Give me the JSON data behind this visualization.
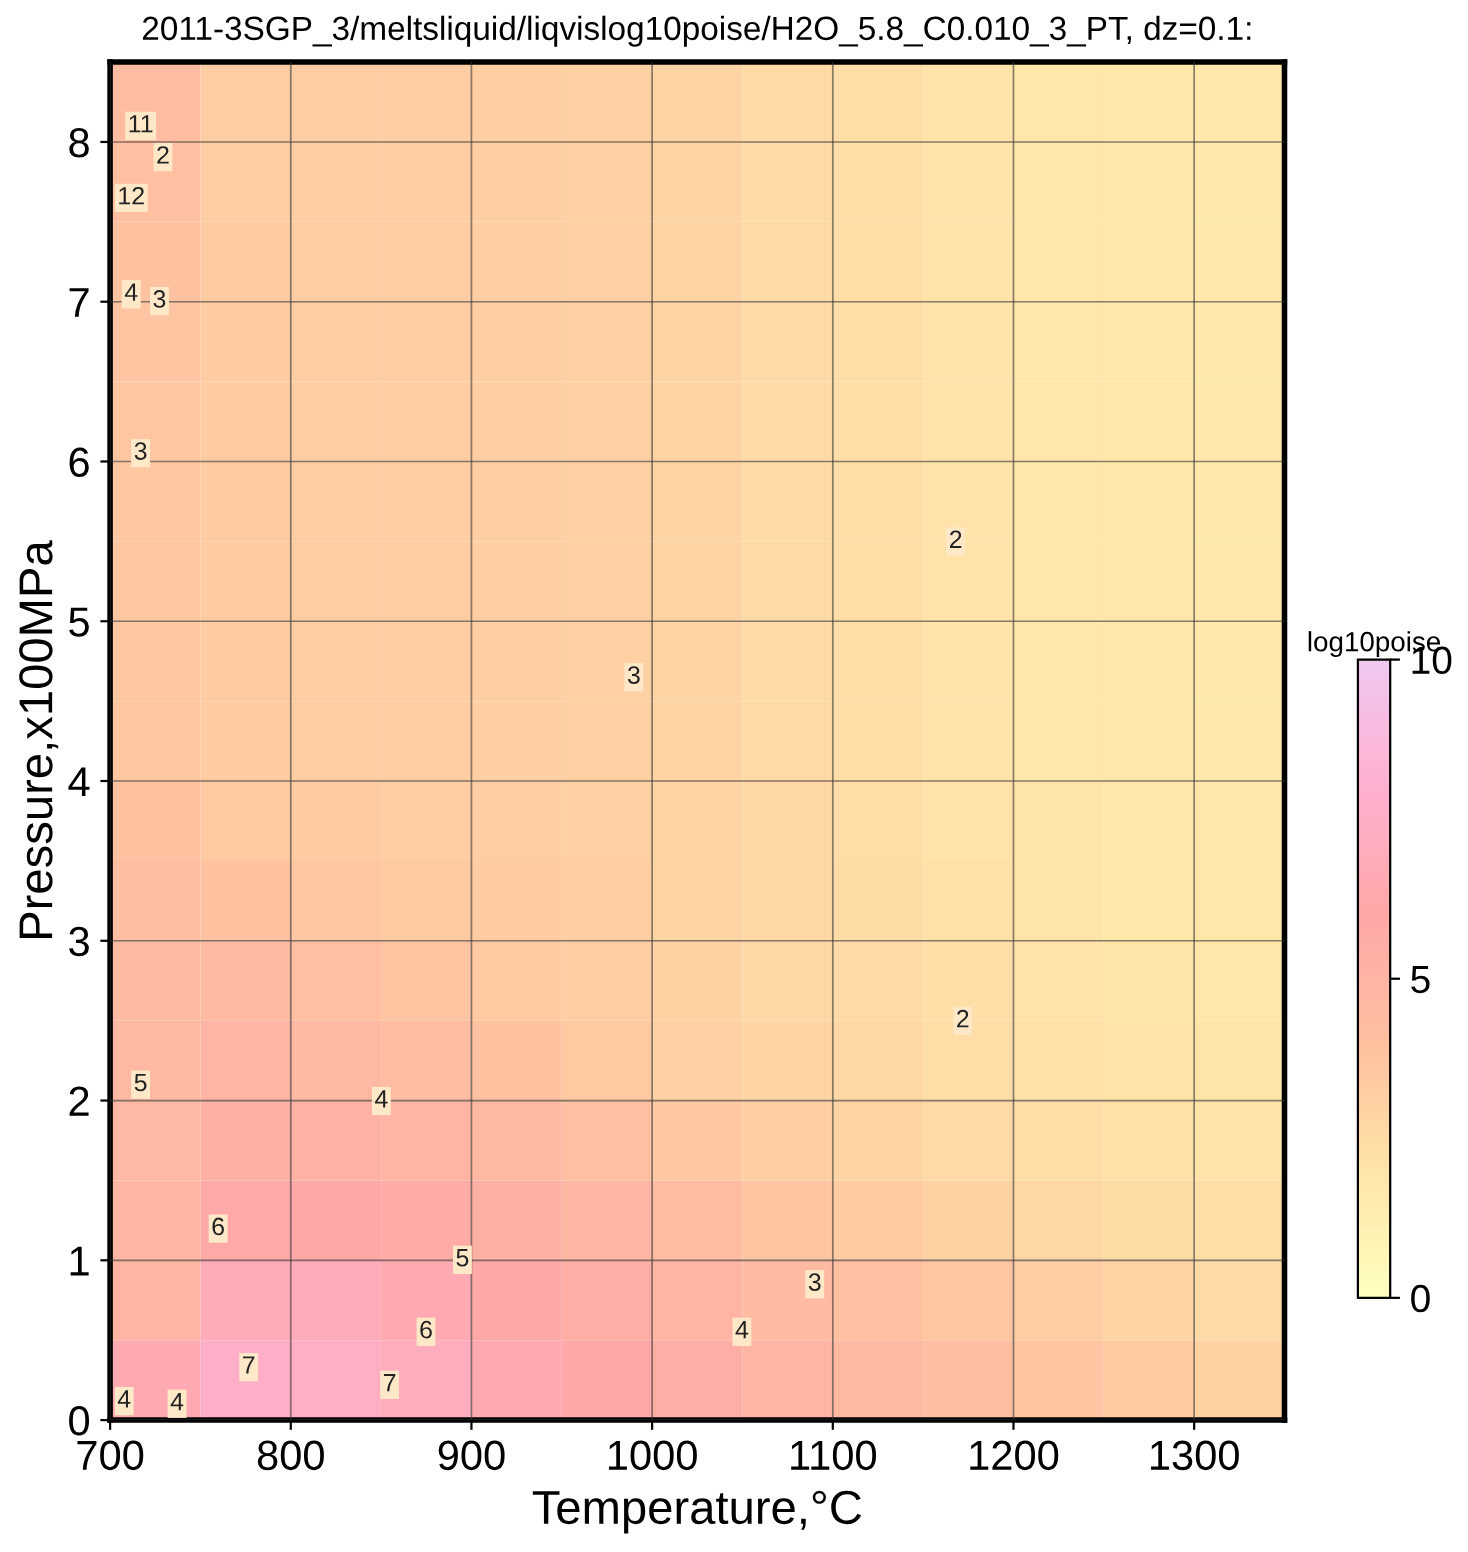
{
  "chart_data": {
    "type": "heatmap",
    "title": "2011-3SGP_3/meltsliquid/liqvislog10poise/H2O_5.8_C0.010_3_PT, dz=0.1:",
    "xlabel": "Temperature,°C",
    "ylabel": "Pressure,x100MPa",
    "clabel": "log10poise",
    "x": [
      725,
      775,
      825,
      875,
      925,
      975,
      1025,
      1075,
      1125,
      1175,
      1225,
      1275,
      1325
    ],
    "y": [
      0.25,
      0.75,
      1.25,
      1.75,
      2.25,
      2.75,
      3.25,
      3.75,
      4.25,
      4.75,
      5.25,
      5.75,
      6.25,
      6.75,
      7.25,
      7.75,
      8.25
    ],
    "cells": [
      [
        6.5,
        7.5,
        7.4,
        7.0,
        6.5,
        6.0,
        5.5,
        5.0,
        4.6,
        4.2,
        3.8,
        3.4,
        3.0
      ],
      [
        5.0,
        6.8,
        6.9,
        6.5,
        6.0,
        5.5,
        5.0,
        4.5,
        4.1,
        3.7,
        3.3,
        2.9,
        2.6
      ],
      [
        4.8,
        5.9,
        6.0,
        5.7,
        5.3,
        4.8,
        4.3,
        3.8,
        3.4,
        3.0,
        2.7,
        2.5,
        2.3
      ],
      [
        4.7,
        5.3,
        5.2,
        5.0,
        4.6,
        4.1,
        3.6,
        3.2,
        2.9,
        2.6,
        2.4,
        2.2,
        2.1
      ],
      [
        4.6,
        5.0,
        4.6,
        4.3,
        3.9,
        3.5,
        3.1,
        2.9,
        2.7,
        2.4,
        2.2,
        2.1,
        2.0
      ],
      [
        4.4,
        4.4,
        4.1,
        3.8,
        3.5,
        3.3,
        3.0,
        2.8,
        2.6,
        2.3,
        2.1,
        2.0,
        1.9
      ],
      [
        4.2,
        3.9,
        3.6,
        3.5,
        3.4,
        3.2,
        2.9,
        2.7,
        2.5,
        2.2,
        2.0,
        1.9,
        1.8
      ],
      [
        3.9,
        3.5,
        3.4,
        3.3,
        3.3,
        3.1,
        2.9,
        2.7,
        2.4,
        2.1,
        2.0,
        1.9,
        1.8
      ],
      [
        3.7,
        3.4,
        3.3,
        3.3,
        3.2,
        3.1,
        2.9,
        2.6,
        2.4,
        2.1,
        1.9,
        1.8,
        1.7
      ],
      [
        3.6,
        3.4,
        3.3,
        3.3,
        3.2,
        3.1,
        2.9,
        2.6,
        2.4,
        2.1,
        1.9,
        1.8,
        1.7
      ],
      [
        3.6,
        3.4,
        3.3,
        3.3,
        3.2,
        3.1,
        2.9,
        2.6,
        2.4,
        2.1,
        1.9,
        1.8,
        1.7
      ],
      [
        3.6,
        3.4,
        3.3,
        3.3,
        3.2,
        3.1,
        2.9,
        2.6,
        2.4,
        2.1,
        1.9,
        1.8,
        1.7
      ],
      [
        3.7,
        3.4,
        3.3,
        3.3,
        3.2,
        3.1,
        2.9,
        2.6,
        2.4,
        2.1,
        1.9,
        1.8,
        1.7
      ],
      [
        3.8,
        3.4,
        3.3,
        3.3,
        3.2,
        3.1,
        2.9,
        2.6,
        2.4,
        2.1,
        1.9,
        1.8,
        1.7
      ],
      [
        3.9,
        3.4,
        3.3,
        3.3,
        3.2,
        3.1,
        2.9,
        2.6,
        2.4,
        2.1,
        1.9,
        1.8,
        1.7
      ],
      [
        4.1,
        3.3,
        3.3,
        3.3,
        3.2,
        3.1,
        2.9,
        2.6,
        2.4,
        2.1,
        1.9,
        1.8,
        1.7
      ],
      [
        4.3,
        3.3,
        3.3,
        3.3,
        3.2,
        3.1,
        2.9,
        2.6,
        2.4,
        2.1,
        1.9,
        1.8,
        1.7
      ]
    ],
    "colors": [
      "#ffffc0",
      "#ffe4a8",
      "#ffc0a0",
      "#ffa8a8",
      "#ffb0d0",
      "#f0c8f0"
    ],
    "clim": [
      0,
      10
    ],
    "cticks": [
      0,
      5,
      10
    ],
    "xlim": [
      700,
      1350
    ],
    "xticks": [
      700,
      800,
      900,
      1000,
      1100,
      1200,
      1300
    ],
    "ylim": [
      0,
      8.5
    ],
    "yticks": [
      0,
      1,
      2,
      3,
      4,
      5,
      6,
      7,
      8
    ],
    "grid": true,
    "annotations": [
      "2",
      "2",
      "3",
      "3",
      "3",
      "3",
      "4",
      "4",
      "4",
      "4",
      "4",
      "5",
      "5",
      "6",
      "6",
      "7",
      "7",
      "11",
      "2",
      "12"
    ]
  }
}
